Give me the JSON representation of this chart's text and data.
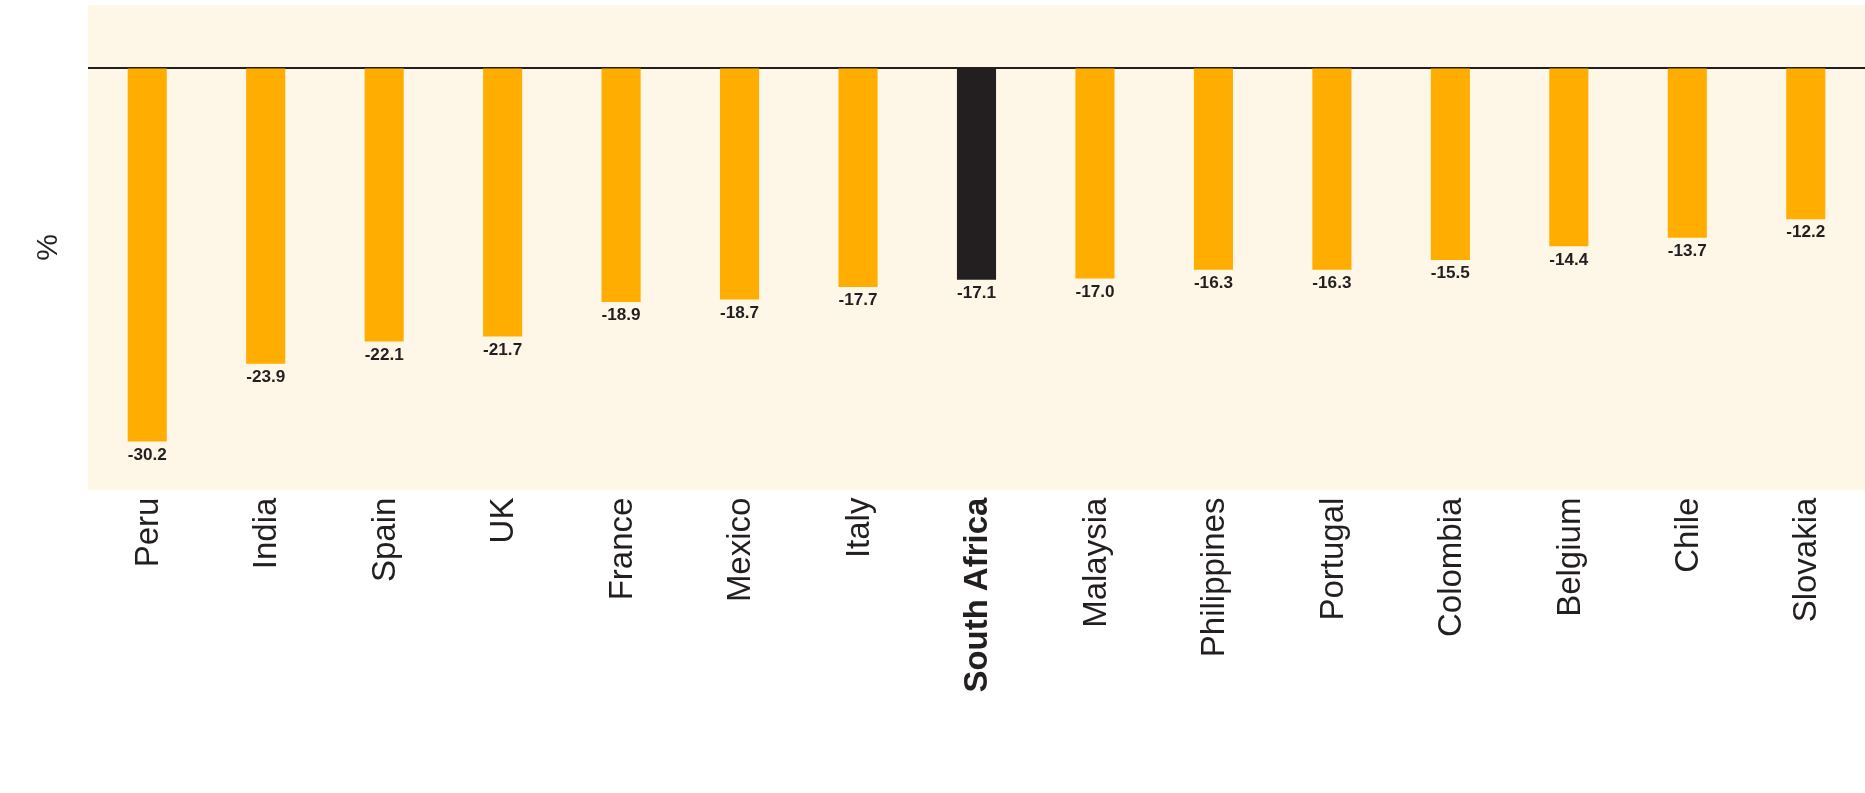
{
  "chart_data": {
    "type": "bar",
    "ylabel": "%",
    "categories": [
      "Peru",
      "India",
      "Spain",
      "UK",
      "France",
      "Mexico",
      "Italy",
      "South Africa",
      "Malaysia",
      "Philippines",
      "Portugal",
      "Colombia",
      "Belgium",
      "Chile",
      "Slovakia"
    ],
    "values": [
      -30.2,
      -23.9,
      -22.1,
      -21.7,
      -18.9,
      -18.7,
      -17.7,
      -17.1,
      -17.0,
      -16.3,
      -16.3,
      -15.5,
      -14.4,
      -13.7,
      -12.2
    ],
    "colors": [
      "#ffad00",
      "#ffad00",
      "#ffad00",
      "#ffad00",
      "#ffad00",
      "#ffad00",
      "#ffad00",
      "#231f20",
      "#ffad00",
      "#ffad00",
      "#ffad00",
      "#ffad00",
      "#ffad00",
      "#ffad00",
      "#ffad00"
    ],
    "value_labels": [
      "-30.2",
      "-23.9",
      "-22.1",
      "-21.7",
      "-18.9",
      "-18.7",
      "-17.7",
      "-17.1",
      "-17.0",
      "-16.3",
      "-16.3",
      "-15.5",
      "-14.4",
      "-13.7",
      "-12.2"
    ],
    "grid": false,
    "legend": false
  }
}
